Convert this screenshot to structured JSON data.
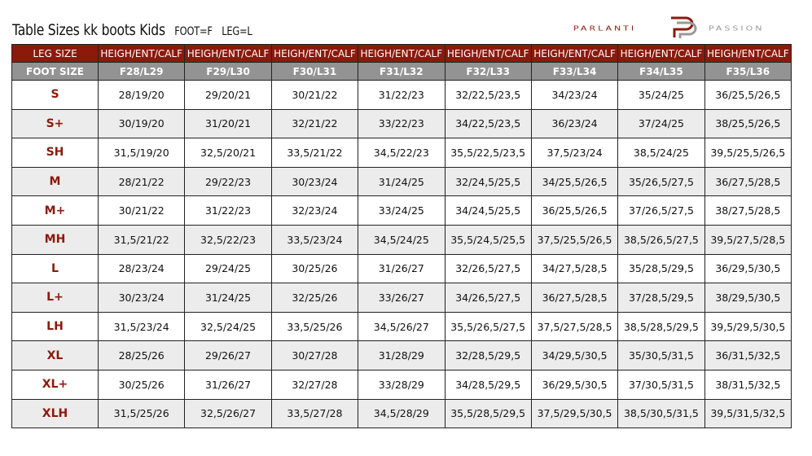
{
  "title": "Table Sizes kk boots Kids",
  "legend_foot": "FOOT=F",
  "legend_leg": "LEG=L",
  "logo": {
    "left": "PARLANTI",
    "right": "PASSION",
    "brand_color": "#8b1a0c"
  },
  "header": {
    "leg_size_label": "LEG SIZE",
    "foot_size_label": "FOOT SIZE",
    "measure_label": "HEIGH/ENT/CALF",
    "columns": [
      "F28/L29",
      "F29/L30",
      "F30/L31",
      "F31/L32",
      "F32/L33",
      "F33/L34",
      "F34/L35",
      "F35/L36"
    ]
  },
  "rows": [
    {
      "size": "S",
      "values": [
        "28/19/20",
        "29/20/21",
        "30/21/22",
        "31/22/23",
        "32/22,5/23,5",
        "34/23/24",
        "35/24/25",
        "36/25,5/26,5"
      ]
    },
    {
      "size": "S+",
      "values": [
        "30/19/20",
        "31/20/21",
        "32/21/22",
        "33/22/23",
        "34/22,5/23,5",
        "36/23/24",
        "37/24/25",
        "38/25,5/26,5"
      ]
    },
    {
      "size": "SH",
      "values": [
        "31,5/19/20",
        "32,5/20/21",
        "33,5/21/22",
        "34,5/22/23",
        "35,5/22,5/23,5",
        "37,5/23/24",
        "38,5/24/25",
        "39,5/25,5/26,5"
      ]
    },
    {
      "size": "M",
      "values": [
        "28/21/22",
        "29/22/23",
        "30/23/24",
        "31/24/25",
        "32/24,5/25,5",
        "34/25,5/26,5",
        "35/26,5/27,5",
        "36/27,5/28,5"
      ]
    },
    {
      "size": "M+",
      "values": [
        "30/21/22",
        "31/22/23",
        "32/23/24",
        "33/24/25",
        "34/24,5/25,5",
        "36/25,5/26,5",
        "37/26,5/27,5",
        "38/27,5/28,5"
      ]
    },
    {
      "size": "MH",
      "values": [
        "31,5/21/22",
        "32,5/22/23",
        "33,5/23/24",
        "34,5/24/25",
        "35,5/24,5/25,5",
        "37,5/25,5/26,5",
        "38,5/26,5/27,5",
        "39,5/27,5/28,5"
      ]
    },
    {
      "size": "L",
      "values": [
        "28/23/24",
        "29/24/25",
        "30/25/26",
        "31/26/27",
        "32/26,5/27,5",
        "34/27,5/28,5",
        "35/28,5/29,5",
        "36/29,5/30,5"
      ]
    },
    {
      "size": "L+",
      "values": [
        "30/23/24",
        "31/24/25",
        "32/25/26",
        "33/26/27",
        "34/26,5/27,5",
        "36/27,5/28,5",
        "37/28,5/29,5",
        "38/29,5/30,5"
      ]
    },
    {
      "size": "LH",
      "values": [
        "31,5/23/24",
        "32,5/24/25",
        "33,5/25/26",
        "34,5/26/27",
        "35,5/26,5/27,5",
        "37,5/27,5/28,5",
        "38,5/28,5/29,5",
        "39,5/29,5/30,5"
      ]
    },
    {
      "size": "XL",
      "values": [
        "28/25/26",
        "29/26/27",
        "30/27/28",
        "31/28/29",
        "32/28,5/29,5",
        "34/29,5/30,5",
        "35/30,5/31,5",
        "36/31,5/32,5"
      ]
    },
    {
      "size": "XL+",
      "values": [
        "30/25/26",
        "31/26/27",
        "32/27/28",
        "33/28/29",
        "34/28,5/29,5",
        "36/29,5/30,5",
        "37/30,5/31,5",
        "38/31,5/32,5"
      ]
    },
    {
      "size": "XLH",
      "values": [
        "31,5/25/26",
        "32,5/26/27",
        "33,5/27/28",
        "34,5/28/29",
        "35,5/28,5/29,5",
        "37,5/29,5/30,5",
        "38,5/30,5/31,5",
        "39,5/31,5/32,5"
      ]
    }
  ]
}
